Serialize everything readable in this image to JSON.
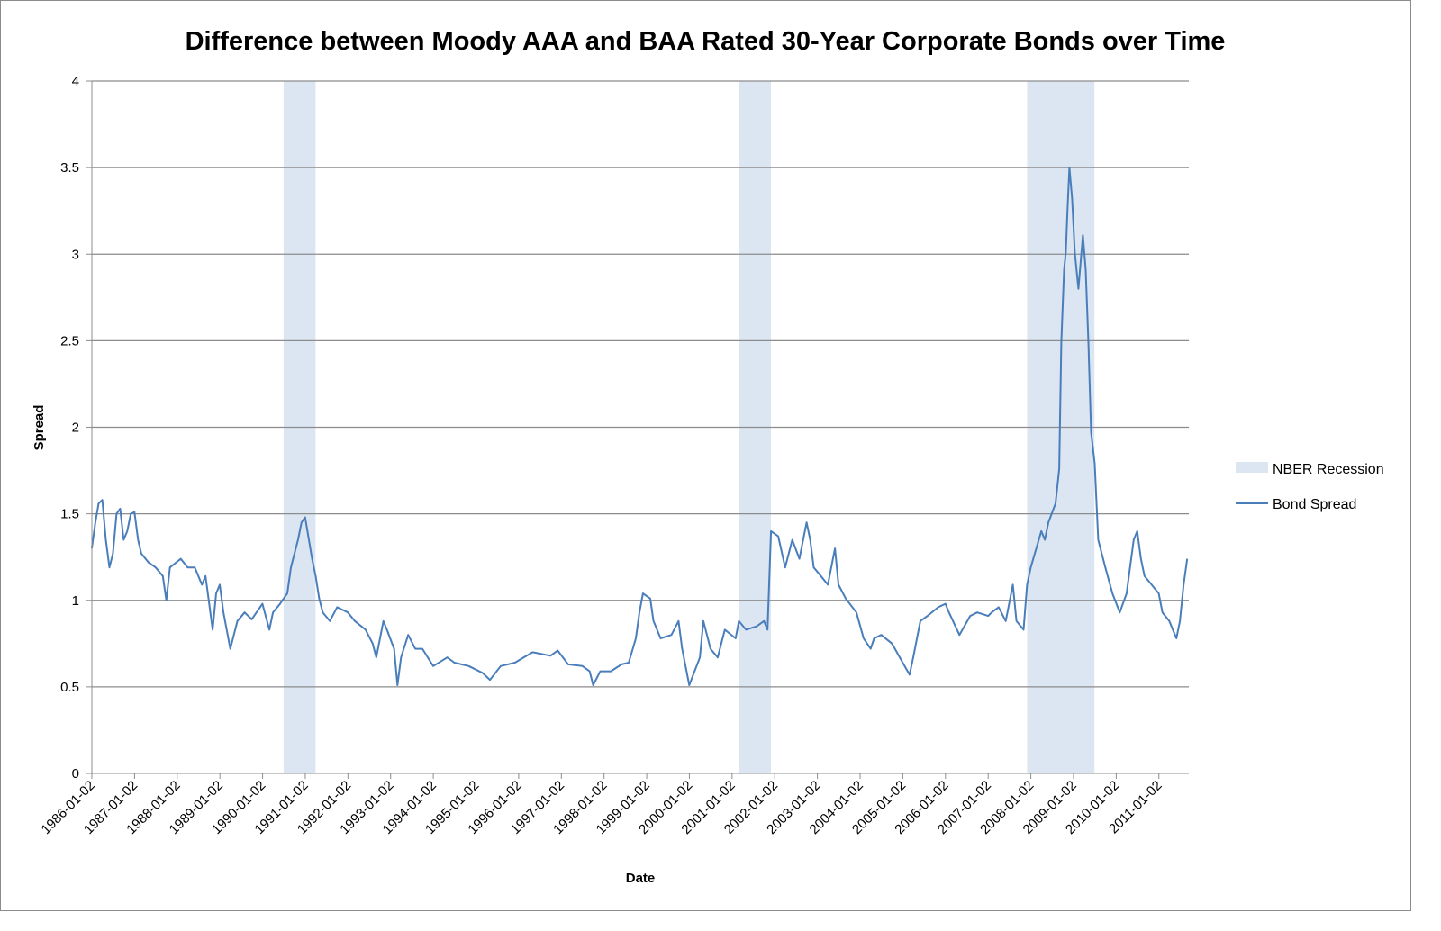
{
  "chart_data": {
    "type": "line",
    "title": "Difference between Moody AAA and BAA Rated 30-Year Corporate Bonds over Time",
    "xlabel": "Date",
    "ylabel": "Spread",
    "ylim": [
      0,
      4
    ],
    "yticks": [
      "0",
      "0.5",
      "1",
      "1.5",
      "2",
      "2.5",
      "3",
      "3.5",
      "4"
    ],
    "xlim": [
      "1986-01-02",
      "2011-09-15"
    ],
    "xticks": [
      "1986-01-02",
      "1987-01-02",
      "1988-01-02",
      "1989-01-02",
      "1990-01-02",
      "1991-01-02",
      "1992-01-02",
      "1993-01-02",
      "1994-01-02",
      "1995-01-02",
      "1996-01-02",
      "1997-01-02",
      "1998-01-02",
      "1999-01-02",
      "2000-01-02",
      "2001-01-02",
      "2002-01-02",
      "2003-01-02",
      "2004-01-02",
      "2005-01-02",
      "2006-01-02",
      "2007-01-02",
      "2008-01-02",
      "2009-01-02",
      "2010-01-02",
      "2011-01-02"
    ],
    "grid": "horizontal",
    "legend_placement": "right",
    "colors": {
      "line": "#4a7ebb",
      "recession": "#dce6f2",
      "grid": "#8c8c8c"
    },
    "recessions": {
      "name": "NBER Recession",
      "periods": [
        [
          "1990-07-01",
          "1991-03-31"
        ],
        [
          "2001-03-01",
          "2001-11-30"
        ],
        [
          "2007-12-01",
          "2009-06-30"
        ]
      ]
    },
    "series": [
      {
        "name": "Bond Spread",
        "points": [
          [
            "1986-01",
            1.3
          ],
          [
            "1986-02",
            1.45
          ],
          [
            "1986-03",
            1.56
          ],
          [
            "1986-04",
            1.58
          ],
          [
            "1986-05",
            1.35
          ],
          [
            "1986-06",
            1.19
          ],
          [
            "1986-07",
            1.27
          ],
          [
            "1986-08",
            1.5
          ],
          [
            "1986-09",
            1.53
          ],
          [
            "1986-10",
            1.35
          ],
          [
            "1986-11",
            1.4
          ],
          [
            "1986-12",
            1.5
          ],
          [
            "1987-01",
            1.51
          ],
          [
            "1987-02",
            1.35
          ],
          [
            "1987-03",
            1.27
          ],
          [
            "1987-05",
            1.22
          ],
          [
            "1987-07",
            1.19
          ],
          [
            "1987-09",
            1.14
          ],
          [
            "1987-10",
            1.0
          ],
          [
            "1987-11",
            1.19
          ],
          [
            "1988-02",
            1.24
          ],
          [
            "1988-04",
            1.19
          ],
          [
            "1988-06",
            1.19
          ],
          [
            "1988-08",
            1.09
          ],
          [
            "1988-09",
            1.14
          ],
          [
            "1988-11",
            0.83
          ],
          [
            "1988-12",
            1.04
          ],
          [
            "1989-01",
            1.09
          ],
          [
            "1989-02",
            0.93
          ],
          [
            "1989-04",
            0.72
          ],
          [
            "1989-06",
            0.88
          ],
          [
            "1989-08",
            0.93
          ],
          [
            "1989-10",
            0.89
          ],
          [
            "1990-01",
            0.98
          ],
          [
            "1990-03",
            0.83
          ],
          [
            "1990-04",
            0.93
          ],
          [
            "1990-06",
            0.98
          ],
          [
            "1990-08",
            1.04
          ],
          [
            "1990-09",
            1.19
          ],
          [
            "1990-11",
            1.35
          ],
          [
            "1990-12",
            1.45
          ],
          [
            "1991-01",
            1.48
          ],
          [
            "1991-03",
            1.24
          ],
          [
            "1991-04",
            1.14
          ],
          [
            "1991-05",
            1.01
          ],
          [
            "1991-06",
            0.93
          ],
          [
            "1991-08",
            0.88
          ],
          [
            "1991-10",
            0.96
          ],
          [
            "1992-01",
            0.93
          ],
          [
            "1992-03",
            0.88
          ],
          [
            "1992-06",
            0.83
          ],
          [
            "1992-08",
            0.75
          ],
          [
            "1992-09",
            0.67
          ],
          [
            "1992-11",
            0.88
          ],
          [
            "1992-12",
            0.83
          ],
          [
            "1993-02",
            0.72
          ],
          [
            "1993-03",
            0.51
          ],
          [
            "1993-04",
            0.67
          ],
          [
            "1993-06",
            0.8
          ],
          [
            "1993-08",
            0.72
          ],
          [
            "1993-10",
            0.72
          ],
          [
            "1994-01",
            0.62
          ],
          [
            "1994-05",
            0.67
          ],
          [
            "1994-07",
            0.64
          ],
          [
            "1994-11",
            0.62
          ],
          [
            "1995-03",
            0.58
          ],
          [
            "1995-05",
            0.54
          ],
          [
            "1995-08",
            0.62
          ],
          [
            "1995-12",
            0.64
          ],
          [
            "1996-05",
            0.7
          ],
          [
            "1996-10",
            0.68
          ],
          [
            "1996-12",
            0.71
          ],
          [
            "1997-03",
            0.63
          ],
          [
            "1997-07",
            0.62
          ],
          [
            "1997-09",
            0.59
          ],
          [
            "1997-10",
            0.51
          ],
          [
            "1997-12",
            0.59
          ],
          [
            "1998-03",
            0.59
          ],
          [
            "1998-06",
            0.63
          ],
          [
            "1998-08",
            0.64
          ],
          [
            "1998-10",
            0.78
          ],
          [
            "1998-11",
            0.93
          ],
          [
            "1998-12",
            1.04
          ],
          [
            "1999-02",
            1.01
          ],
          [
            "1999-03",
            0.88
          ],
          [
            "1999-05",
            0.78
          ],
          [
            "1999-08",
            0.8
          ],
          [
            "1999-10",
            0.88
          ],
          [
            "1999-11",
            0.72
          ],
          [
            "2000-01",
            0.51
          ],
          [
            "2000-04",
            0.67
          ],
          [
            "2000-05",
            0.88
          ],
          [
            "2000-07",
            0.72
          ],
          [
            "2000-09",
            0.67
          ],
          [
            "2000-11",
            0.83
          ],
          [
            "2001-02",
            0.78
          ],
          [
            "2001-03",
            0.88
          ],
          [
            "2001-05",
            0.83
          ],
          [
            "2001-08",
            0.85
          ],
          [
            "2001-10",
            0.88
          ],
          [
            "2001-11",
            0.83
          ],
          [
            "2001-12",
            1.4
          ],
          [
            "2002-02",
            1.37
          ],
          [
            "2002-04",
            1.19
          ],
          [
            "2002-06",
            1.35
          ],
          [
            "2002-08",
            1.24
          ],
          [
            "2002-10",
            1.45
          ],
          [
            "2002-11",
            1.35
          ],
          [
            "2002-12",
            1.19
          ],
          [
            "2003-02",
            1.14
          ],
          [
            "2003-04",
            1.09
          ],
          [
            "2003-06",
            1.3
          ],
          [
            "2003-07",
            1.09
          ],
          [
            "2003-09",
            1.01
          ],
          [
            "2003-12",
            0.93
          ],
          [
            "2004-02",
            0.78
          ],
          [
            "2004-04",
            0.72
          ],
          [
            "2004-05",
            0.78
          ],
          [
            "2004-07",
            0.8
          ],
          [
            "2004-10",
            0.75
          ],
          [
            "2005-01",
            0.64
          ],
          [
            "2005-03",
            0.57
          ],
          [
            "2005-04",
            0.67
          ],
          [
            "2005-06",
            0.88
          ],
          [
            "2005-08",
            0.91
          ],
          [
            "2005-11",
            0.96
          ],
          [
            "2006-01",
            0.98
          ],
          [
            "2006-02",
            0.93
          ],
          [
            "2006-05",
            0.8
          ],
          [
            "2006-08",
            0.91
          ],
          [
            "2006-10",
            0.93
          ],
          [
            "2007-01",
            0.91
          ],
          [
            "2007-02",
            0.93
          ],
          [
            "2007-04",
            0.96
          ],
          [
            "2007-06",
            0.88
          ],
          [
            "2007-08",
            1.09
          ],
          [
            "2007-09",
            0.88
          ],
          [
            "2007-11",
            0.83
          ],
          [
            "2007-12",
            1.09
          ],
          [
            "2008-01",
            1.19
          ],
          [
            "2008-04",
            1.4
          ],
          [
            "2008-05",
            1.35
          ],
          [
            "2008-06",
            1.45
          ],
          [
            "2008-08",
            1.56
          ],
          [
            "2008-09",
            1.76
          ],
          [
            "2008-09-19",
            2.49
          ],
          [
            "2008-10-13",
            2.91
          ],
          [
            "2008-10-28",
            3.01
          ],
          [
            "2008-11-12",
            3.27
          ],
          [
            "2008-11-28",
            3.5
          ],
          [
            "2008-12-21",
            3.32
          ],
          [
            "2009-01-13",
            3.01
          ],
          [
            "2009-02-13",
            2.8
          ],
          [
            "2009-03-23",
            3.11
          ],
          [
            "2009-04-16",
            2.91
          ],
          [
            "2009-05-09",
            2.49
          ],
          [
            "2009-06-01",
            1.97
          ],
          [
            "2009-07-02",
            1.79
          ],
          [
            "2009-08",
            1.35
          ],
          [
            "2009-10",
            1.19
          ],
          [
            "2009-12",
            1.04
          ],
          [
            "2010-02",
            0.93
          ],
          [
            "2010-04",
            1.04
          ],
          [
            "2010-06",
            1.35
          ],
          [
            "2010-07",
            1.4
          ],
          [
            "2010-08",
            1.24
          ],
          [
            "2010-09",
            1.14
          ],
          [
            "2010-11",
            1.09
          ],
          [
            "2011-01",
            1.04
          ],
          [
            "2011-02",
            0.93
          ],
          [
            "2011-04",
            0.88
          ],
          [
            "2011-06",
            0.78
          ],
          [
            "2011-07",
            0.88
          ],
          [
            "2011-08",
            1.09
          ],
          [
            "2011-09",
            1.24
          ]
        ]
      }
    ]
  }
}
